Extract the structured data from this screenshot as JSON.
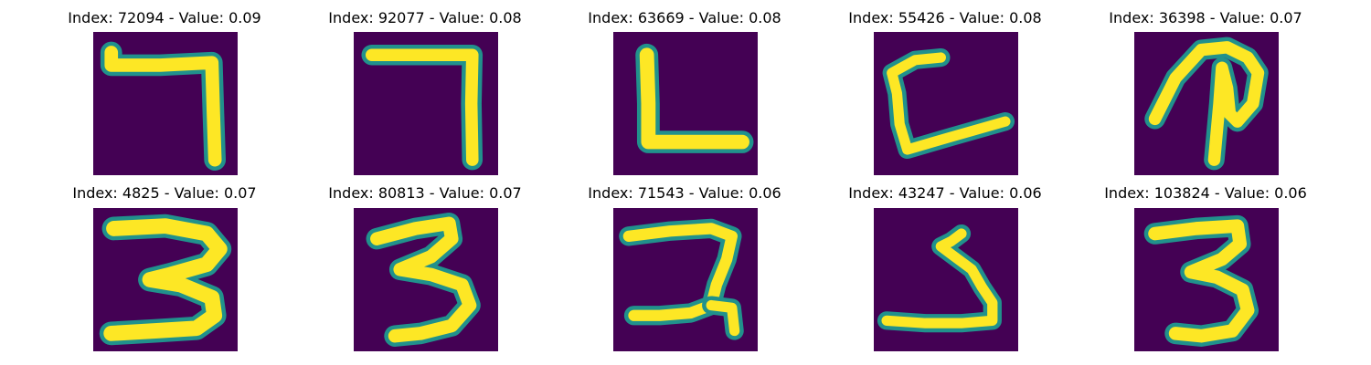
{
  "colors": {
    "background": "#440154",
    "stroke": "#fde725",
    "edge": "#21918c",
    "mid": "#5ec962"
  },
  "panels": [
    {
      "title": "Index: 72094 - Value: 0.09",
      "glyph": "seven-hook"
    },
    {
      "title": "Index: 92077 - Value: 0.08",
      "glyph": "seven"
    },
    {
      "title": "Index: 63669 - Value: 0.08",
      "glyph": "L"
    },
    {
      "title": "Index: 55426 - Value: 0.08",
      "glyph": "C-open"
    },
    {
      "title": "Index: 36398 - Value: 0.07",
      "glyph": "P-loop"
    },
    {
      "title": "Index: 4825 - Value: 0.07",
      "glyph": "three-bold"
    },
    {
      "title": "Index: 80813 - Value: 0.07",
      "glyph": "three"
    },
    {
      "title": "Index: 71543 - Value: 0.06",
      "glyph": "two-wavy"
    },
    {
      "title": "Index: 43247 - Value: 0.06",
      "glyph": "five-like"
    },
    {
      "title": "Index: 103824 - Value: 0.06",
      "glyph": "three-tall"
    }
  ]
}
